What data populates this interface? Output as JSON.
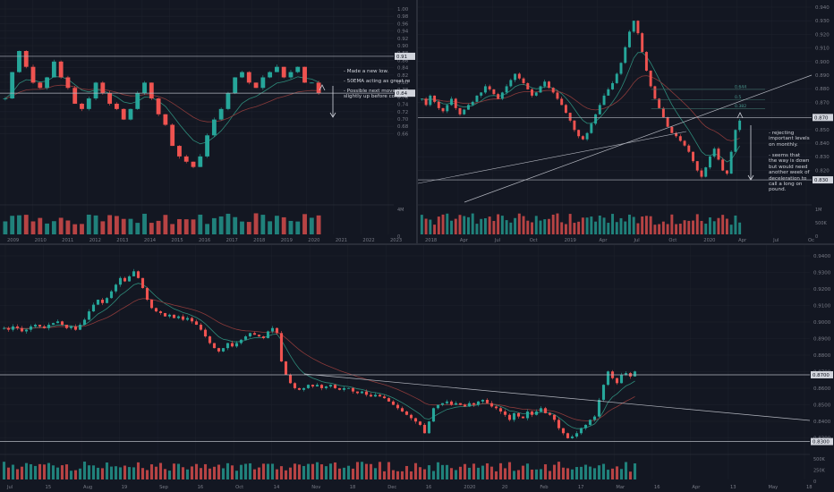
{
  "colors": {
    "background": "#131722",
    "up": "#26a69a",
    "down": "#ef5350",
    "grid": "#1e222d",
    "axis_text": "#787b86",
    "hline": "#b2b5be",
    "ema_fast": "#2e8b7a",
    "ema_slow": "#8a3a3a",
    "label_bg": "#d1d4dc"
  },
  "chart_data": [
    {
      "type": "candlestick",
      "panel": "top-left",
      "timeframe_hint": "monthly",
      "x_axis_labels": [
        "2009",
        "2010",
        "2011",
        "2012",
        "2013",
        "2014",
        "2015",
        "2016",
        "2017",
        "2018",
        "2019",
        "2020",
        "2021",
        "2022",
        "2023"
      ],
      "y_axis_labels": [
        "1.00",
        "0.98",
        "0.96",
        "0.94",
        "0.92",
        "0.90",
        "0.88",
        "0.86",
        "0.84",
        "0.82",
        "0.80",
        "0.78",
        "0.76",
        "0.74",
        "0.72",
        "0.70",
        "0.68",
        "0.66"
      ],
      "ylim": [
        0.64,
        1.01
      ],
      "volume_axis_labels": [
        "4M",
        "0"
      ],
      "horizontal_levels": [
        0.91,
        0.84
      ],
      "price_labels": [
        "0.91",
        "0.84"
      ],
      "annotations": [
        "- Made a new low.",
        "- 50EMA acting as great re",
        "- Possible next move : cor\nslightly up before continu"
      ],
      "series_closes": [
        0.83,
        0.88,
        0.92,
        0.89,
        0.86,
        0.85,
        0.87,
        0.9,
        0.87,
        0.85,
        0.82,
        0.81,
        0.83,
        0.86,
        0.84,
        0.82,
        0.81,
        0.79,
        0.81,
        0.84,
        0.86,
        0.83,
        0.8,
        0.78,
        0.74,
        0.72,
        0.71,
        0.7,
        0.72,
        0.76,
        0.79,
        0.81,
        0.84,
        0.87,
        0.88,
        0.86,
        0.85,
        0.87,
        0.88,
        0.89,
        0.87,
        0.88,
        0.89,
        0.86,
        0.86,
        0.84
      ]
    },
    {
      "type": "candlestick",
      "panel": "top-right",
      "timeframe_hint": "weekly",
      "x_axis_labels": [
        "2018",
        "Apr",
        "Jul",
        "Oct",
        "2019",
        "Apr",
        "Jul",
        "Oct",
        "2020",
        "Apr",
        "Jul",
        "Oc"
      ],
      "y_axis_labels": [
        "0.940",
        "0.930",
        "0.920",
        "0.910",
        "0.900",
        "0.890",
        "0.880",
        "0.870",
        "0.860",
        "0.850",
        "0.840",
        "0.830",
        "0.820"
      ],
      "ylim": [
        0.818,
        0.943
      ],
      "volume_axis_labels": [
        "1M",
        "500K",
        "0"
      ],
      "horizontal_levels": [
        0.87,
        0.83
      ],
      "price_labels": [
        "0.870",
        "0.830"
      ],
      "fib_levels": [
        {
          "label": "0.644",
          "value": 0.888
        },
        {
          "label": "0.5",
          "value": 0.8815
        },
        {
          "label": "0.382",
          "value": 0.8755
        }
      ],
      "annotations": [
        "- rejecting\nimportant levels\non monthly.",
        "- seems that\nthe way is down\nbut would need\nanother week of\ndeceleration to\ncall a long on\npound."
      ],
      "series_closes": [
        0.882,
        0.878,
        0.884,
        0.88,
        0.876,
        0.874,
        0.878,
        0.882,
        0.876,
        0.872,
        0.875,
        0.878,
        0.88,
        0.884,
        0.886,
        0.89,
        0.888,
        0.885,
        0.882,
        0.886,
        0.89,
        0.894,
        0.898,
        0.895,
        0.892,
        0.888,
        0.884,
        0.886,
        0.89,
        0.893,
        0.889,
        0.886,
        0.882,
        0.878,
        0.873,
        0.868,
        0.862,
        0.858,
        0.856,
        0.86,
        0.866,
        0.872,
        0.878,
        0.884,
        0.888,
        0.892,
        0.898,
        0.905,
        0.915,
        0.925,
        0.932,
        0.924,
        0.912,
        0.9,
        0.89,
        0.882,
        0.876,
        0.87,
        0.864,
        0.86,
        0.858,
        0.855,
        0.852,
        0.848,
        0.842,
        0.836,
        0.832,
        0.838,
        0.845,
        0.85,
        0.843,
        0.836,
        0.834,
        0.848,
        0.862,
        0.868
      ]
    },
    {
      "type": "candlestick",
      "panel": "bottom",
      "timeframe_hint": "daily",
      "x_axis_labels": [
        "Jul",
        "15",
        "Aug",
        "19",
        "Sep",
        "16",
        "Oct",
        "14",
        "Nov",
        "18",
        "Dec",
        "16",
        "2020",
        "20",
        "Feb",
        "17",
        "Mar",
        "16",
        "Apr",
        "13",
        "May",
        "18"
      ],
      "y_axis_labels": [
        "0.9400",
        "0.9300",
        "0.9200",
        "0.9100",
        "0.9000",
        "0.8900",
        "0.8800",
        "0.8700",
        "0.8600",
        "0.8500",
        "0.8400",
        "0.8300"
      ],
      "ylim": [
        0.8255,
        0.9445
      ],
      "volume_axis_labels": [
        "500K",
        "250K",
        "0"
      ],
      "horizontal_levels": [
        0.87,
        0.83
      ],
      "price_labels": [
        "0.8700",
        "0.8300"
      ],
      "series_closes": [
        0.898,
        0.897,
        0.899,
        0.898,
        0.896,
        0.897,
        0.899,
        0.9,
        0.899,
        0.898,
        0.9,
        0.901,
        0.902,
        0.9,
        0.898,
        0.899,
        0.897,
        0.9,
        0.903,
        0.908,
        0.912,
        0.915,
        0.913,
        0.916,
        0.92,
        0.924,
        0.928,
        0.926,
        0.929,
        0.932,
        0.928,
        0.922,
        0.915,
        0.91,
        0.908,
        0.907,
        0.905,
        0.906,
        0.904,
        0.905,
        0.903,
        0.904,
        0.902,
        0.9,
        0.897,
        0.893,
        0.889,
        0.886,
        0.884,
        0.886,
        0.889,
        0.887,
        0.889,
        0.891,
        0.893,
        0.895,
        0.894,
        0.893,
        0.892,
        0.896,
        0.898,
        0.895,
        0.878,
        0.87,
        0.865,
        0.862,
        0.861,
        0.862,
        0.864,
        0.863,
        0.864,
        0.862,
        0.863,
        0.864,
        0.862,
        0.861,
        0.862,
        0.862,
        0.86,
        0.859,
        0.86,
        0.858,
        0.857,
        0.858,
        0.857,
        0.856,
        0.854,
        0.852,
        0.85,
        0.848,
        0.846,
        0.844,
        0.842,
        0.84,
        0.835,
        0.842,
        0.85,
        0.852,
        0.853,
        0.854,
        0.852,
        0.853,
        0.852,
        0.851,
        0.853,
        0.852,
        0.854,
        0.855,
        0.853,
        0.851,
        0.85,
        0.848,
        0.846,
        0.843,
        0.847,
        0.845,
        0.844,
        0.848,
        0.846,
        0.848,
        0.85,
        0.847,
        0.846,
        0.843,
        0.838,
        0.835,
        0.832,
        0.833,
        0.835,
        0.838,
        0.84,
        0.843,
        0.845,
        0.855,
        0.864,
        0.872,
        0.868,
        0.865,
        0.87,
        0.871,
        0.869,
        0.872
      ]
    }
  ]
}
